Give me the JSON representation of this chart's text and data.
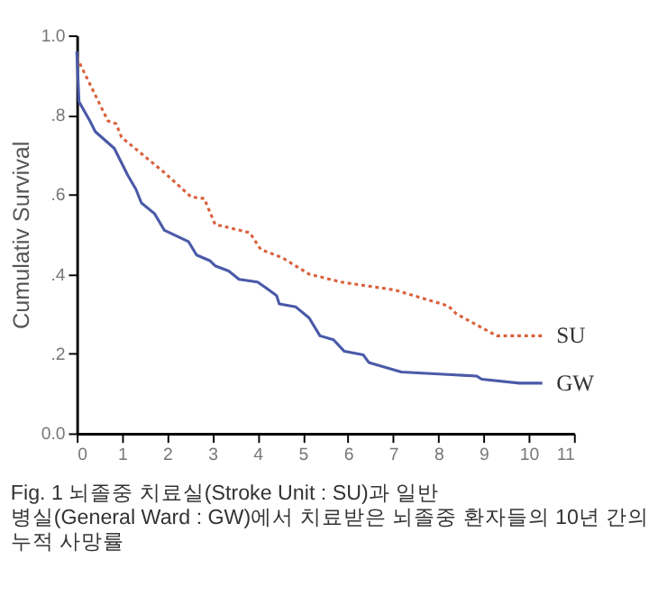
{
  "chart_data": {
    "type": "line",
    "title": "Fig. 1  뇌졸중 치료실(Stroke Unit : SU)과 일반 병실(General Ward : GW)에서 치료받은 뇌졸중 환자들의 10년 간의 누적 사망률",
    "ylabel": "Cumulativ Survival",
    "xlim": [
      0,
      11
    ],
    "xticks": [
      0,
      1,
      2,
      3,
      4,
      5,
      6,
      7,
      8,
      9,
      10,
      11
    ],
    "ylim": [
      0,
      1
    ],
    "yticks": [
      {
        "value": 0,
        "label": "0.0"
      },
      {
        "value": 0.2,
        "label": ".2"
      },
      {
        "value": 0.4,
        "label": ".4"
      },
      {
        "value": 0.6,
        "label": ".6"
      },
      {
        "value": 0.8,
        "label": ".8"
      },
      {
        "value": 1,
        "label": "1.0"
      }
    ],
    "grid": false,
    "marker": "none",
    "series": [
      {
        "name": "SU",
        "color": "#d9603b",
        "line_style": "dotted",
        "x": [
          0,
          0.69,
          0.87,
          0.99,
          1.94,
          2.53,
          2.82,
          3.06,
          3.83,
          4.07,
          4.55,
          5.14,
          5.85,
          7.04,
          8.22,
          8.4,
          9.29,
          10.3
        ],
        "values": [
          0.945,
          0.785,
          0.778,
          0.744,
          0.655,
          0.594,
          0.59,
          0.525,
          0.504,
          0.462,
          0.441,
          0.4,
          0.38,
          0.36,
          0.32,
          0.3,
          0.245,
          0.245
        ]
      },
      {
        "name": "GW",
        "color": "#4a5aa8",
        "line_style": "solid",
        "x": [
          0,
          0.05,
          0.29,
          0.41,
          0.83,
          1.13,
          1.31,
          1.43,
          1.72,
          1.94,
          2.47,
          2.65,
          2.94,
          3.06,
          3.36,
          3.59,
          4.0,
          4.18,
          4.42,
          4.48,
          4.84,
          5.14,
          5.38,
          5.68,
          5.92,
          6.34,
          6.46,
          7.18,
          8.84,
          8.96,
          9.79,
          10.3
        ],
        "values": [
          0.96,
          0.833,
          0.785,
          0.758,
          0.716,
          0.648,
          0.613,
          0.579,
          0.552,
          0.51,
          0.482,
          0.448,
          0.434,
          0.421,
          0.408,
          0.387,
          0.38,
          0.366,
          0.346,
          0.325,
          0.318,
          0.29,
          0.245,
          0.235,
          0.206,
          0.197,
          0.178,
          0.154,
          0.144,
          0.136,
          0.126,
          0.126
        ]
      }
    ]
  }
}
